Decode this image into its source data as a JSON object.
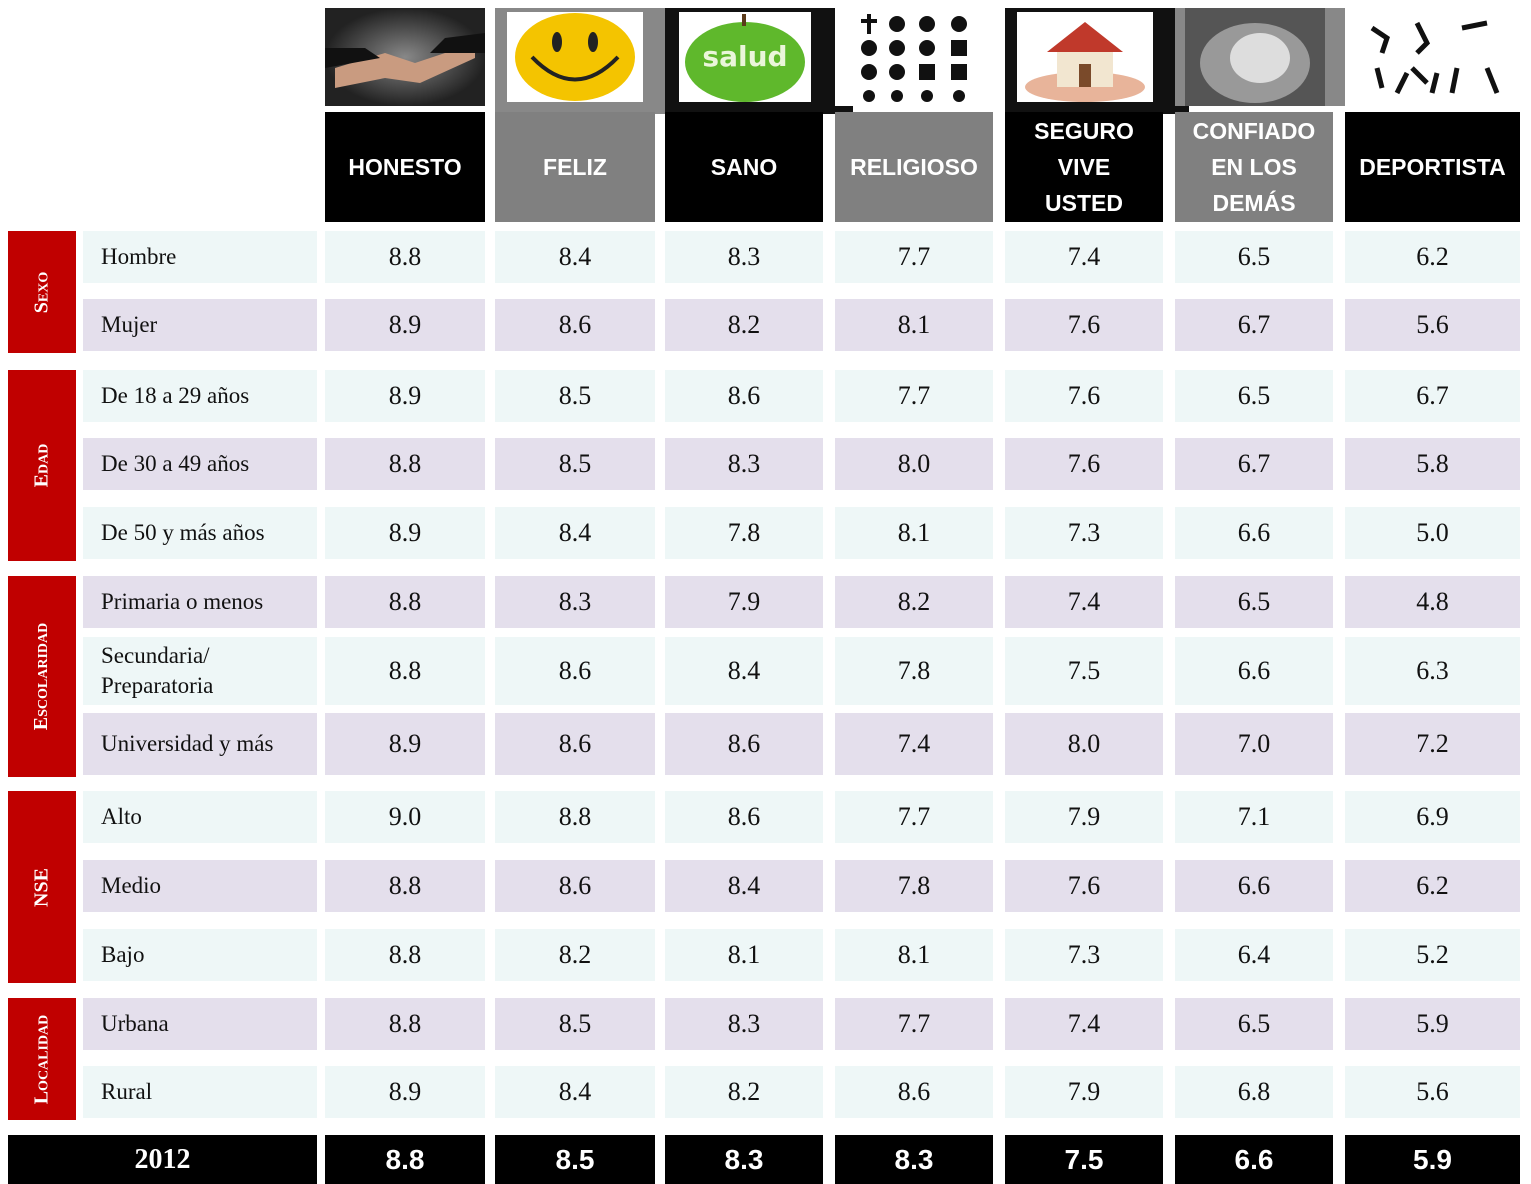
{
  "columns": [
    {
      "label": "HONESTO"
    },
    {
      "label": "FELIZ"
    },
    {
      "label": "SANO",
      "image_text": "salud"
    },
    {
      "label": "RELIGIOSO"
    },
    {
      "label": "SEGURO VIVE USTED"
    },
    {
      "label": "CONFIADO EN LOS DEMÁS"
    },
    {
      "label": "DEPORTISTA"
    }
  ],
  "groups": [
    {
      "label": "Sexo",
      "rows": [
        {
          "label": "Hombre",
          "values": [
            "8.8",
            "8.4",
            "8.3",
            "7.7",
            "7.4",
            "6.5",
            "6.2"
          ]
        },
        {
          "label": "Mujer",
          "values": [
            "8.9",
            "8.6",
            "8.2",
            "8.1",
            "7.6",
            "6.7",
            "5.6"
          ]
        }
      ]
    },
    {
      "label": "Edad",
      "rows": [
        {
          "label": "De 18 a 29 años",
          "values": [
            "8.9",
            "8.5",
            "8.6",
            "7.7",
            "7.6",
            "6.5",
            "6.7"
          ]
        },
        {
          "label": "De 30 a 49 años",
          "values": [
            "8.8",
            "8.5",
            "8.3",
            "8.0",
            "7.6",
            "6.7",
            "5.8"
          ]
        },
        {
          "label": "De 50 y más años",
          "values": [
            "8.9",
            "8.4",
            "7.8",
            "8.1",
            "7.3",
            "6.6",
            "5.0"
          ]
        }
      ]
    },
    {
      "label": "Escolaridad",
      "rows": [
        {
          "label": "Primaria o menos",
          "values": [
            "8.8",
            "8.3",
            "7.9",
            "8.2",
            "7.4",
            "6.5",
            "4.8"
          ]
        },
        {
          "label": "Secundaria/ Preparatoria",
          "values": [
            "8.8",
            "8.6",
            "8.4",
            "7.8",
            "7.5",
            "6.6",
            "6.3"
          ]
        },
        {
          "label": "Universidad y más",
          "values": [
            "8.9",
            "8.6",
            "8.6",
            "7.4",
            "8.0",
            "7.0",
            "7.2"
          ]
        }
      ]
    },
    {
      "label": "NSE",
      "rows": [
        {
          "label": "Alto",
          "values": [
            "9.0",
            "8.8",
            "8.6",
            "7.7",
            "7.9",
            "7.1",
            "6.9"
          ]
        },
        {
          "label": "Medio",
          "values": [
            "8.8",
            "8.6",
            "8.4",
            "7.8",
            "7.6",
            "6.6",
            "6.2"
          ]
        },
        {
          "label": "Bajo",
          "values": [
            "8.8",
            "8.2",
            "8.1",
            "8.1",
            "7.3",
            "6.4",
            "5.2"
          ]
        }
      ]
    },
    {
      "label": "Localidad",
      "rows": [
        {
          "label": "Urbana",
          "values": [
            "8.8",
            "8.5",
            "8.3",
            "7.7",
            "7.4",
            "6.5",
            "5.9"
          ]
        },
        {
          "label": "Rural",
          "values": [
            "8.9",
            "8.4",
            "8.2",
            "8.6",
            "7.9",
            "6.8",
            "5.6"
          ]
        }
      ]
    }
  ],
  "total": {
    "label": "2012",
    "values": [
      "8.8",
      "8.5",
      "8.3",
      "8.3",
      "7.5",
      "6.6",
      "5.9"
    ]
  }
}
